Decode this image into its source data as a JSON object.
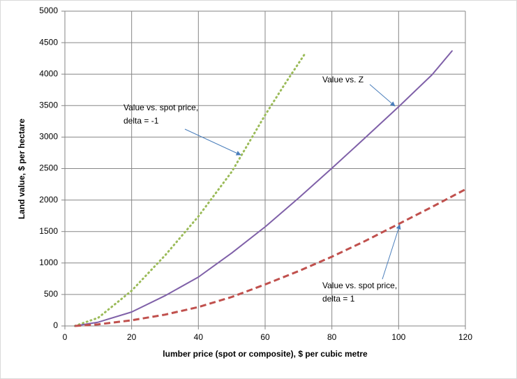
{
  "chart_data": {
    "type": "line",
    "x_label": "lumber price (spot or composite),  $ per cubic metre",
    "y_label": "Land value, $ per hectare",
    "xlim": [
      0,
      120
    ],
    "xticks": [
      0,
      20,
      40,
      60,
      80,
      100,
      120
    ],
    "ylim": [
      0,
      5000
    ],
    "yticks": [
      0,
      500,
      1000,
      1500,
      2000,
      2500,
      3000,
      3500,
      4000,
      4500,
      5000
    ],
    "grid": true,
    "series": [
      {
        "color": "#9bbb59",
        "style": "dotted",
        "x": [
          3,
          10,
          20,
          30,
          40,
          50,
          60,
          66,
          72
        ],
        "values": [
          0,
          130,
          560,
          1120,
          1740,
          2450,
          3350,
          3850,
          4330
        ]
      },
      {
        "color": "#7f60a8",
        "style": "solid",
        "x": [
          3,
          10,
          20,
          30,
          40,
          50,
          60,
          70,
          80,
          90,
          100,
          110,
          116
        ],
        "values": [
          0,
          60,
          222,
          480,
          776,
          1160,
          1574,
          2030,
          2505,
          2990,
          3481,
          3990,
          4368
        ]
      },
      {
        "color": "#c0504d",
        "style": "dashed",
        "x": [
          3,
          10,
          20,
          30,
          40,
          50,
          60,
          70,
          80,
          90,
          100,
          110,
          120
        ],
        "values": [
          0,
          25,
          90,
          180,
          300,
          460,
          660,
          870,
          1100,
          1350,
          1620,
          1890,
          2170
        ]
      }
    ],
    "annotations": [
      {
        "lines": [
          "Value vs. spot price,",
          "delta = -1"
        ]
      },
      {
        "lines": [
          "Value vs. Z"
        ]
      },
      {
        "lines": [
          "Value vs. spot price,",
          "delta = 1"
        ]
      }
    ]
  }
}
